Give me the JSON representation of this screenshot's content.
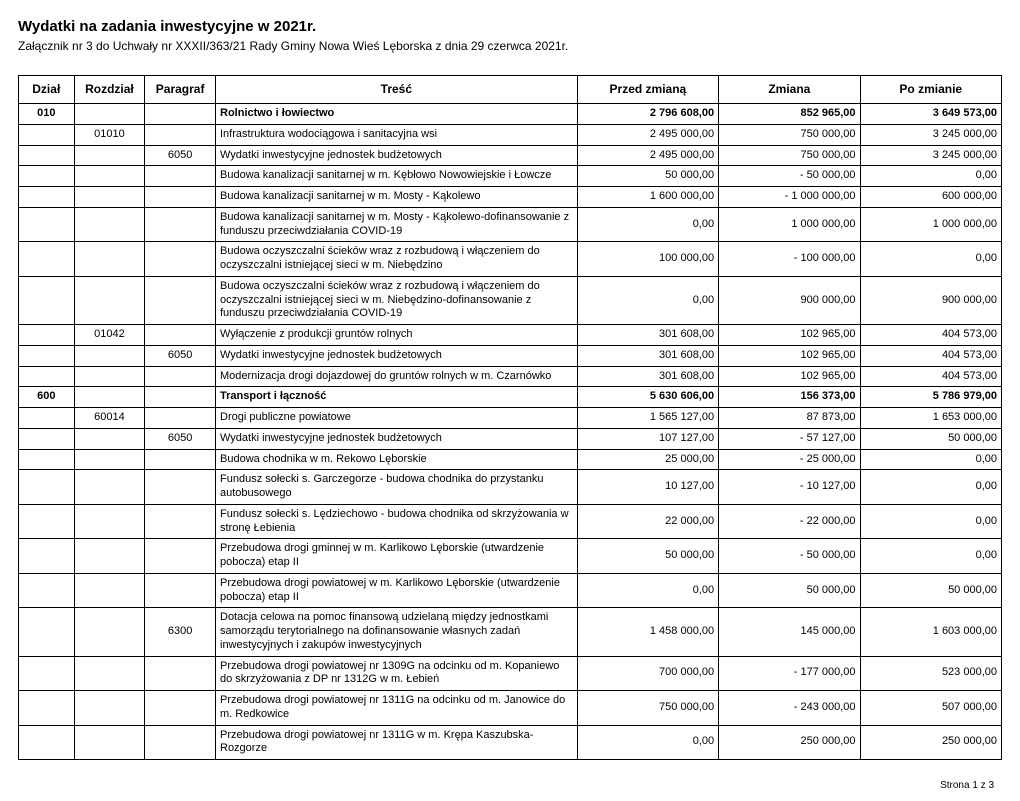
{
  "title": "Wydatki na zadania inwestycyjne w 2021r.",
  "subtitle": "Załącznik nr 3 do Uchwały nr XXXII/363/21 Rady Gminy Nowa Wieś Lęborska z dnia 29 czerwca 2021r.",
  "pager": "Strona 1 z 3",
  "headers": {
    "dzial": "Dział",
    "rozdzial": "Rozdział",
    "paragraf": "Paragraf",
    "tresc": "Treść",
    "przed": "Przed zmianą",
    "zmiana": "Zmiana",
    "po": "Po zmianie"
  },
  "rows": [
    {
      "type": "section",
      "dzial": "010",
      "rozdzial": "",
      "paragraf": "",
      "tresc": "Rolnictwo i łowiectwo",
      "przed": "2 796 608,00",
      "zmiana": "852 965,00",
      "po": "3 649 573,00"
    },
    {
      "type": "sub",
      "dzial": "",
      "rozdzial": "01010",
      "paragraf": "",
      "tresc": "Infrastruktura wodociągowa i sanitacyjna wsi",
      "przed": "2 495 000,00",
      "zmiana": "750 000,00",
      "po": "3 245 000,00"
    },
    {
      "type": "sub",
      "dzial": "",
      "rozdzial": "",
      "paragraf": "6050",
      "tresc": "Wydatki inwestycyjne jednostek budżetowych",
      "przed": "2 495 000,00",
      "zmiana": "750 000,00",
      "po": "3 245 000,00"
    },
    {
      "type": "item",
      "dzial": "",
      "rozdzial": "",
      "paragraf": "",
      "tresc": "Budowa kanalizacji sanitarnej w m. Kębłowo Nowowiejskie i Łowcze",
      "przed": "50 000,00",
      "zmiana": "- 50 000,00",
      "po": "0,00"
    },
    {
      "type": "item",
      "dzial": "",
      "rozdzial": "",
      "paragraf": "",
      "tresc": "Budowa kanalizacji sanitarnej w m. Mosty - Kąkolewo",
      "przed": "1 600 000,00",
      "zmiana": "- 1 000 000,00",
      "po": "600 000,00"
    },
    {
      "type": "item",
      "dzial": "",
      "rozdzial": "",
      "paragraf": "",
      "tresc": "Budowa kanalizacji sanitarnej w m. Mosty - Kąkolewo-dofinansowanie z funduszu przeciwdziałania COVID-19",
      "przed": "0,00",
      "zmiana": "1 000 000,00",
      "po": "1 000 000,00"
    },
    {
      "type": "item",
      "dzial": "",
      "rozdzial": "",
      "paragraf": "",
      "tresc": "Budowa oczyszczalni ścieków wraz z rozbudową i włączeniem do oczyszczalni istniejącej sieci w m. Niebędzino",
      "przed": "100 000,00",
      "zmiana": "- 100 000,00",
      "po": "0,00"
    },
    {
      "type": "item",
      "dzial": "",
      "rozdzial": "",
      "paragraf": "",
      "tresc": "Budowa oczyszczalni ścieków wraz z rozbudową i włączeniem do oczyszczalni istniejącej sieci w m. Niebędzino-dofinansowanie z funduszu przeciwdziałania COVID-19",
      "przed": "0,00",
      "zmiana": "900 000,00",
      "po": "900 000,00"
    },
    {
      "type": "sub",
      "dzial": "",
      "rozdzial": "01042",
      "paragraf": "",
      "tresc": "Wyłączenie z produkcji gruntów rolnych",
      "przed": "301 608,00",
      "zmiana": "102 965,00",
      "po": "404 573,00"
    },
    {
      "type": "sub",
      "dzial": "",
      "rozdzial": "",
      "paragraf": "6050",
      "tresc": "Wydatki inwestycyjne jednostek budżetowych",
      "przed": "301 608,00",
      "zmiana": "102 965,00",
      "po": "404 573,00"
    },
    {
      "type": "item",
      "dzial": "",
      "rozdzial": "",
      "paragraf": "",
      "tresc": "Modernizacja drogi dojazdowej do gruntów rolnych w m. Czarnówko",
      "przed": "301 608,00",
      "zmiana": "102 965,00",
      "po": "404 573,00"
    },
    {
      "type": "section",
      "dzial": "600",
      "rozdzial": "",
      "paragraf": "",
      "tresc": "Transport i łączność",
      "przed": "5 630 606,00",
      "zmiana": "156 373,00",
      "po": "5 786 979,00"
    },
    {
      "type": "sub",
      "dzial": "",
      "rozdzial": "60014",
      "paragraf": "",
      "tresc": "Drogi publiczne powiatowe",
      "przed": "1 565 127,00",
      "zmiana": "87 873,00",
      "po": "1 653 000,00"
    },
    {
      "type": "sub",
      "dzial": "",
      "rozdzial": "",
      "paragraf": "6050",
      "tresc": "Wydatki inwestycyjne jednostek budżetowych",
      "przed": "107 127,00",
      "zmiana": "- 57 127,00",
      "po": "50 000,00"
    },
    {
      "type": "item",
      "dzial": "",
      "rozdzial": "",
      "paragraf": "",
      "tresc": "Budowa chodnika w m. Rekowo Lęborskie",
      "przed": "25 000,00",
      "zmiana": "- 25 000,00",
      "po": "0,00"
    },
    {
      "type": "item",
      "dzial": "",
      "rozdzial": "",
      "paragraf": "",
      "tresc": "Fundusz sołecki s. Garczegorze - budowa chodnika do przystanku autobusowego",
      "przed": "10 127,00",
      "zmiana": "- 10 127,00",
      "po": "0,00"
    },
    {
      "type": "item",
      "dzial": "",
      "rozdzial": "",
      "paragraf": "",
      "tresc": "Fundusz sołecki s. Lędziechowo - budowa chodnika od skrzyżowania w stronę Łebienia",
      "przed": "22 000,00",
      "zmiana": "- 22 000,00",
      "po": "0,00"
    },
    {
      "type": "item",
      "dzial": "",
      "rozdzial": "",
      "paragraf": "",
      "tresc": "Przebudowa drogi gminnej w m. Karlikowo Lęborskie (utwardzenie pobocza) etap II",
      "przed": "50 000,00",
      "zmiana": "- 50 000,00",
      "po": "0,00"
    },
    {
      "type": "item",
      "dzial": "",
      "rozdzial": "",
      "paragraf": "",
      "tresc": "Przebudowa drogi powiatowej w m. Karlikowo Lęborskie (utwardzenie pobocza) etap II",
      "przed": "0,00",
      "zmiana": "50 000,00",
      "po": "50 000,00"
    },
    {
      "type": "sub",
      "dzial": "",
      "rozdzial": "",
      "paragraf": "6300",
      "tresc": "Dotacja celowa na pomoc finansową udzielaną między jednostkami samorządu terytorialnego na dofinansowanie własnych zadań inwestycyjnych i zakupów inwestycyjnych",
      "przed": "1 458 000,00",
      "zmiana": "145 000,00",
      "po": "1 603 000,00"
    },
    {
      "type": "item",
      "dzial": "",
      "rozdzial": "",
      "paragraf": "",
      "tresc": "Przebudowa drogi powiatowej nr 1309G na odcinku od m. Kopaniewo do skrzyżowania z DP nr 1312G w m. Łebień",
      "przed": "700 000,00",
      "zmiana": "- 177 000,00",
      "po": "523 000,00"
    },
    {
      "type": "item",
      "dzial": "",
      "rozdzial": "",
      "paragraf": "",
      "tresc": "Przebudowa drogi powiatowej nr 1311G na odcinku od m. Janowice do m. Redkowice",
      "przed": "750 000,00",
      "zmiana": "- 243 000,00",
      "po": "507 000,00"
    },
    {
      "type": "item",
      "dzial": "",
      "rozdzial": "",
      "paragraf": "",
      "tresc": "Przebudowa drogi powiatowej nr 1311G w m. Krępa Kaszubska-Rozgorze",
      "przed": "0,00",
      "zmiana": "250 000,00",
      "po": "250 000,00"
    }
  ]
}
